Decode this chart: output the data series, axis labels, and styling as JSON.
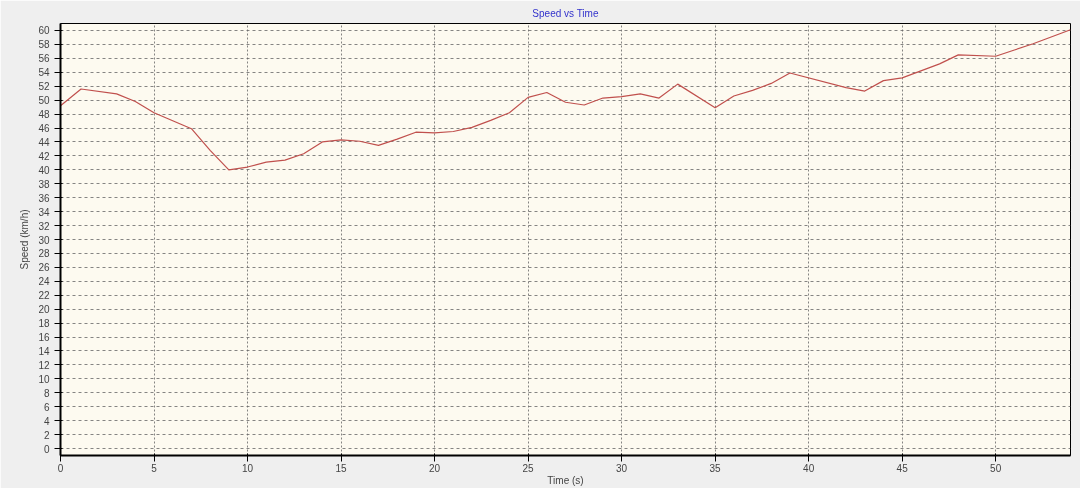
{
  "chart_data": {
    "type": "line",
    "title": "Speed vs Time",
    "xlabel": "Time (s)",
    "ylabel": "Speed (km/h)",
    "x": [
      0,
      1.1,
      3,
      4,
      5,
      7,
      8,
      9,
      10,
      11,
      12,
      13,
      14,
      15,
      16,
      17,
      18,
      19,
      20,
      21,
      22,
      23,
      24,
      25,
      26,
      27,
      28,
      29,
      30,
      31,
      32,
      33,
      35,
      36,
      37,
      38,
      39,
      42,
      43,
      44,
      45,
      46,
      47,
      48,
      50,
      51,
      52,
      54
    ],
    "series": [
      {
        "color": "#c0504d",
        "values": [
          49.2,
          51.6,
          50.9,
          49.8,
          48.2,
          45.9,
          42.8,
          40.0,
          40.4,
          41.1,
          41.4,
          42.3,
          44.0,
          44.3,
          44.1,
          43.5,
          44.4,
          45.4,
          45.3,
          45.5,
          46.1,
          47.1,
          48.2,
          50.4,
          51.1,
          49.7,
          49.3,
          50.3,
          50.5,
          50.9,
          50.3,
          52.3,
          48.9,
          50.6,
          51.4,
          52.4,
          53.9,
          51.8,
          51.3,
          52.8,
          53.2,
          54.2,
          55.2,
          56.5,
          56.3,
          57.2,
          58.1,
          60.1
        ]
      }
    ],
    "xlim": [
      0,
      54
    ],
    "ylim": [
      -1,
      61
    ],
    "xticks": [
      0,
      5,
      10,
      15,
      20,
      25,
      30,
      35,
      40,
      45,
      50
    ],
    "yticks": [
      0,
      2,
      4,
      6,
      8,
      10,
      12,
      14,
      16,
      18,
      20,
      22,
      24,
      26,
      28,
      30,
      32,
      34,
      36,
      38,
      40,
      42,
      44,
      46,
      48,
      50,
      52,
      54,
      56,
      58,
      60
    ],
    "grid": true,
    "marker": "none",
    "line_style": "solid"
  }
}
